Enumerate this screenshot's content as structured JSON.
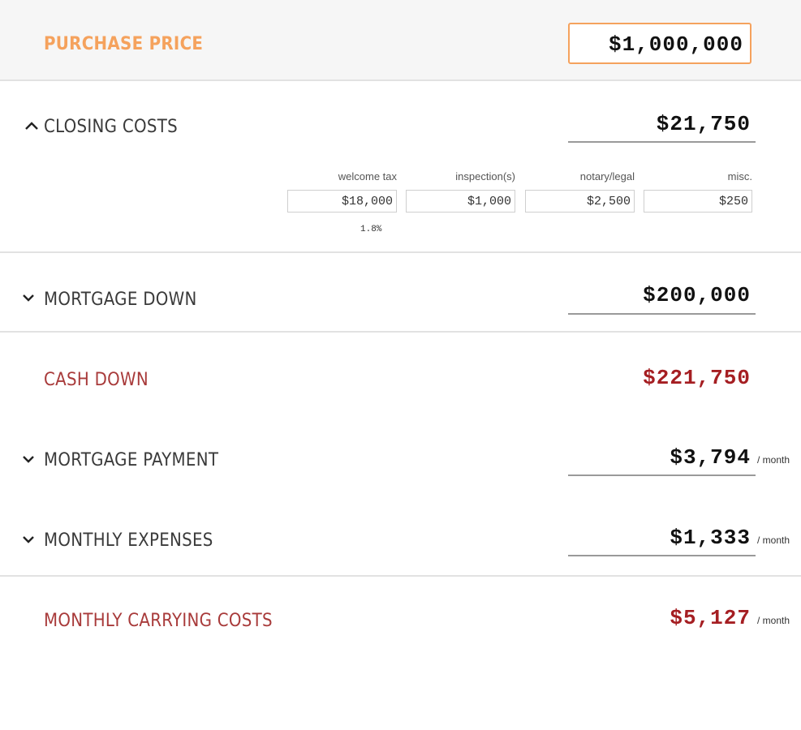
{
  "purchase_price": {
    "label": "PURCHASE PRICE",
    "value": "$1,000,000"
  },
  "closing_costs": {
    "label": "CLOSING COSTS",
    "total": "$21,750",
    "items": [
      {
        "label": "welcome tax",
        "value": "$18,000"
      },
      {
        "label": "inspection(s)",
        "value": "$1,000"
      },
      {
        "label": "notary/legal",
        "value": "$2,500"
      },
      {
        "label": "misc.",
        "value": "$250"
      }
    ],
    "welcome_tax_pct": "1.8%"
  },
  "mortgage_down": {
    "label": "MORTGAGE DOWN",
    "value": "$200,000"
  },
  "cash_down": {
    "label": "CASH DOWN",
    "value": "$221,750"
  },
  "mortgage_payment": {
    "label": "MORTGAGE PAYMENT",
    "value": "$3,794",
    "unit": "/ month"
  },
  "monthly_expenses": {
    "label": "MONTHLY EXPENSES",
    "value": "$1,333",
    "unit": "/ month"
  },
  "monthly_carrying": {
    "label": "MONTHLY CARRYING COSTS",
    "value": "$5,127",
    "unit": "/ month"
  },
  "colors": {
    "accent_orange": "#f5a25d",
    "result_red": "#a51e22"
  }
}
